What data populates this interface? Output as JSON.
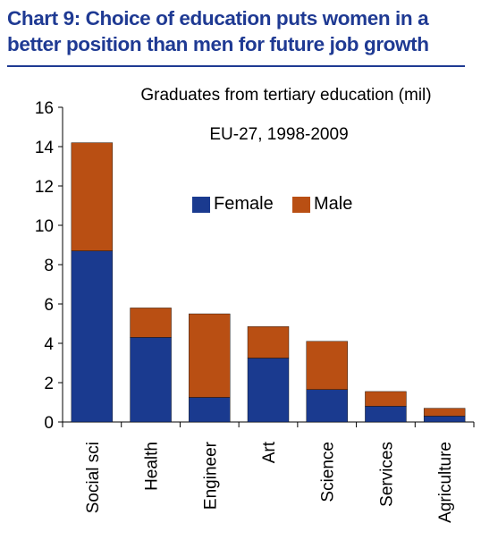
{
  "chart_title": "Chart 9: Choice of education puts women in a better position than men for future job growth",
  "chart_data": {
    "type": "bar",
    "stacked": true,
    "subtitle_lines": [
      "Graduates from tertiary education (mil)",
      "EU-27, 1998-2009"
    ],
    "categories": [
      "Social sci",
      "Health",
      "Engineer",
      "Art",
      "Science",
      "Services",
      "Agriculture"
    ],
    "series": [
      {
        "name": "Female",
        "color": "#1a3a8f",
        "values": [
          8.7,
          4.3,
          1.25,
          3.25,
          1.65,
          0.8,
          0.3
        ]
      },
      {
        "name": "Male",
        "color": "#b94f13",
        "values": [
          5.5,
          1.5,
          4.25,
          1.6,
          2.45,
          0.75,
          0.4
        ]
      }
    ],
    "ylim": [
      0,
      16
    ],
    "yticks": [
      0,
      2,
      4,
      6,
      8,
      10,
      12,
      14,
      16
    ],
    "legend_position": "inside-top-right",
    "grid": false
  }
}
